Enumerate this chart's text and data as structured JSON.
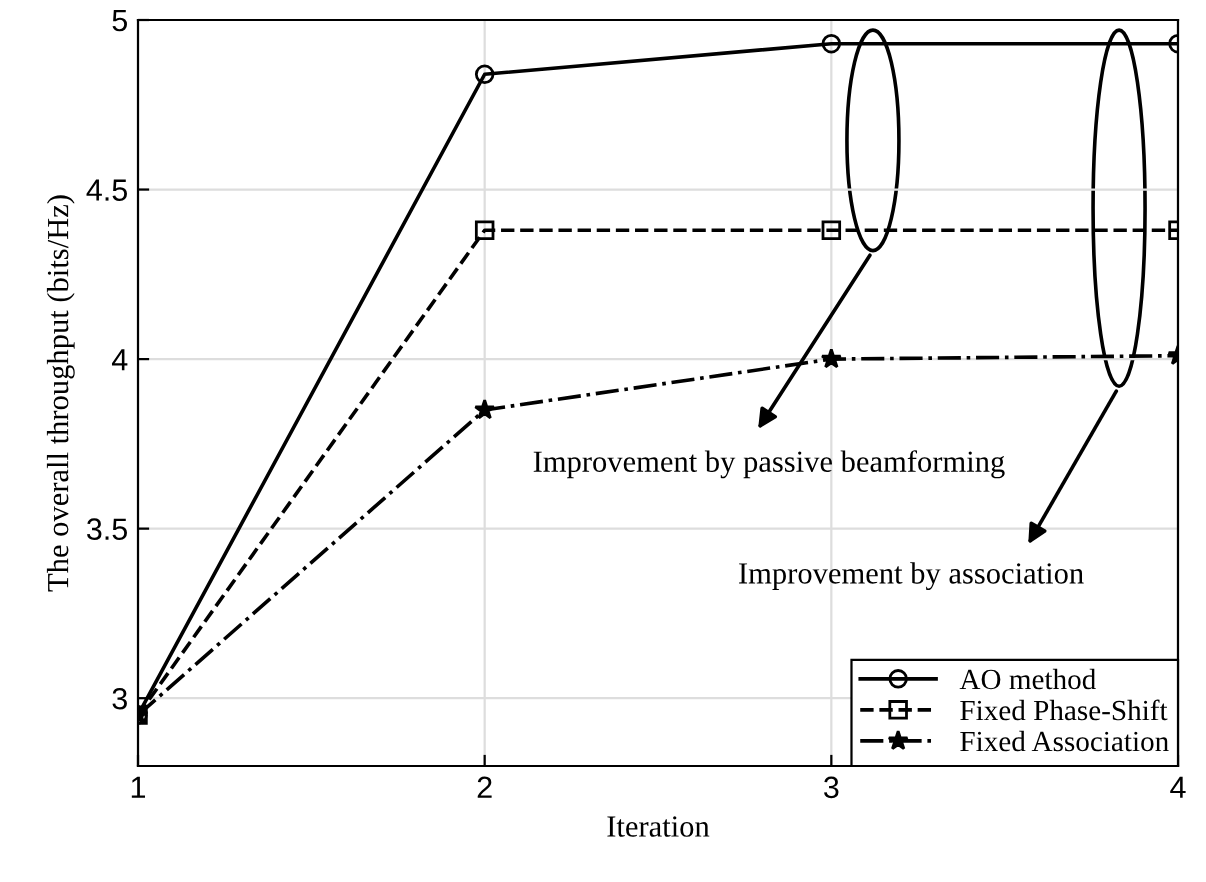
{
  "chart_data": {
    "type": "line",
    "xlabel": "Iteration",
    "ylabel": "The overall throughput (bits/Hz)",
    "x": [
      1,
      2,
      3,
      4
    ],
    "series": [
      {
        "name": "AO method",
        "color": "#000000",
        "values": [
          2.95,
          4.84,
          4.93,
          4.93
        ],
        "marker": "circle",
        "line_style": "solid"
      },
      {
        "name": "Fixed Phase-Shift",
        "color": "#000000",
        "values": [
          2.95,
          4.38,
          4.38,
          4.38
        ],
        "marker": "square",
        "line_style": "dashed"
      },
      {
        "name": "Fixed Association",
        "color": "#000000",
        "values": [
          2.95,
          3.85,
          4.0,
          4.01
        ],
        "marker": "star",
        "line_style": "dashdot"
      }
    ],
    "xlim": [
      1,
      4
    ],
    "xticks": [
      1,
      2,
      3,
      4
    ],
    "ylim": [
      2.8,
      5
    ],
    "yticks": [
      3,
      3.5,
      4,
      4.5,
      5
    ],
    "grid": true,
    "legend": "bottom right",
    "annotations": [
      "Improvement by passive beamforming",
      "Improvement by association"
    ]
  }
}
